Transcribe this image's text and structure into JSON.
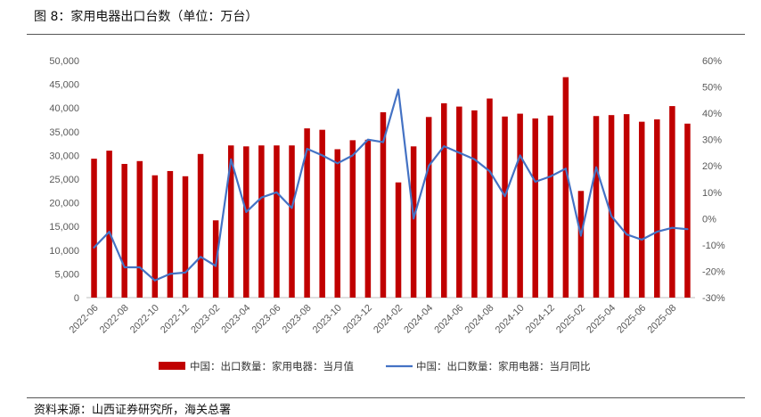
{
  "figure": {
    "title": "图 8：家用电器出口台数（单位：万台）",
    "source": "资料来源：山西证券研究所，海关总署"
  },
  "chart_data": {
    "type": "bar",
    "categories": [
      "2022-06",
      "2022-07",
      "2022-08",
      "2022-09",
      "2022-10",
      "2022-11",
      "2022-12",
      "2023-01",
      "2023-02",
      "2023-03",
      "2023-04",
      "2023-05",
      "2023-06",
      "2023-07",
      "2023-08",
      "2023-09",
      "2023-10",
      "2023-11",
      "2023-12",
      "2024-01",
      "2024-02",
      "2024-03",
      "2024-04",
      "2024-05",
      "2024-06",
      "2024-07",
      "2024-08",
      "2024-09",
      "2024-10",
      "2024-11",
      "2024-12",
      "2025-01",
      "2025-02",
      "2025-03",
      "2025-04",
      "2025-05",
      "2025-06",
      "2025-07",
      "2025-08",
      "2025-09"
    ],
    "x_tick_labels": [
      "2022-06",
      "2022-08",
      "2022-10",
      "2022-12",
      "2023-02",
      "2023-04",
      "2023-06",
      "2023-08",
      "2023-10",
      "2023-12",
      "2024-02",
      "2024-04",
      "2024-06",
      "2024-08",
      "2024-10",
      "2024-12",
      "2025-02",
      "2025-04",
      "2025-06",
      "2025-08"
    ],
    "series": [
      {
        "name": "中国：出口数量：家用电器：当月值",
        "type": "bar",
        "axis": "left",
        "color": "#C00000",
        "values": [
          29300,
          31000,
          28200,
          28800,
          25800,
          26700,
          25600,
          30300,
          16300,
          32100,
          31900,
          32100,
          32100,
          32100,
          35700,
          35400,
          31300,
          33200,
          33300,
          39100,
          24300,
          31900,
          38100,
          41000,
          40300,
          39500,
          42000,
          38200,
          38800,
          37800,
          38400,
          46500,
          22500,
          38300,
          38500,
          38700,
          37100,
          37600,
          40400,
          36700
        ]
      },
      {
        "name": "中国：出口数量：家用电器：当月同比",
        "type": "line",
        "axis": "right",
        "color": "#4472C4",
        "values": [
          -11.0,
          -5.0,
          -18.5,
          -18.5,
          -23.5,
          -21.0,
          -20.5,
          -14.5,
          -18.0,
          22.5,
          2.5,
          8.0,
          10.0,
          4.0,
          26.5,
          24.0,
          21.0,
          24.0,
          30.0,
          29.0,
          49.0,
          0.0,
          20.0,
          27.5,
          25.0,
          22.5,
          18.0,
          8.5,
          24.0,
          14.0,
          16.0,
          19.0,
          -6.5,
          19.5,
          1.0,
          -6.0,
          -8.0,
          -5.0,
          -3.5,
          -4.0
        ]
      }
    ],
    "y_left": {
      "ylim": [
        0,
        50000
      ],
      "tick_labels": [
        "0",
        "5,000",
        "10,000",
        "15,000",
        "20,000",
        "25,000",
        "30,000",
        "35,000",
        "40,000",
        "45,000",
        "50,000"
      ]
    },
    "y_right": {
      "ylim": [
        -30,
        60
      ],
      "tick_labels": [
        "-30%",
        "-20%",
        "-10%",
        "0%",
        "10%",
        "20%",
        "30%",
        "40%",
        "50%",
        "60%"
      ]
    },
    "grid": false,
    "legend_position": "bottom-center"
  }
}
